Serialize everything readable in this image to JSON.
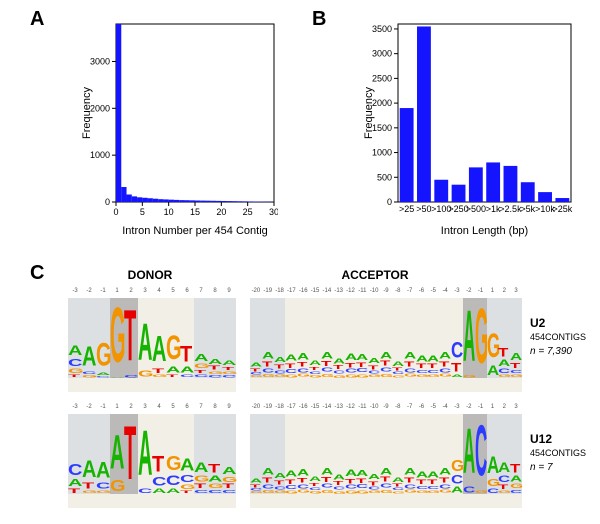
{
  "panelA": {
    "label": "A",
    "type": "bar",
    "xlabel": "Intron Number per 454 Contig",
    "ylabel": "Frequency",
    "bar_color": "#1414ff",
    "background_color": "#ffffff",
    "axis_color": "#000000",
    "bar_width": 1.0,
    "x_ticks": [
      0,
      5,
      10,
      15,
      20,
      25,
      30
    ],
    "y_ticks": [
      0,
      1000,
      2000,
      3000
    ],
    "y_tick_labels": [
      "0",
      "1000",
      "2000",
      "3000"
    ],
    "xlim": [
      0,
      30
    ],
    "ylim": [
      0,
      3800
    ],
    "values": [
      3800,
      320,
      160,
      120,
      100,
      90,
      80,
      70,
      60,
      55,
      50,
      45,
      40,
      38,
      35,
      32,
      30,
      28,
      26,
      24,
      22,
      20,
      18,
      16,
      14,
      12,
      10,
      8,
      6,
      4
    ],
    "label_fontsize": 11,
    "tick_fontsize": 9
  },
  "panelB": {
    "label": "B",
    "type": "bar",
    "xlabel": "Intron Length (bp)",
    "ylabel": "Frequency",
    "bar_color": "#1414ff",
    "background_color": "#ffffff",
    "axis_color": "#000000",
    "bar_width": 0.8,
    "categories": [
      ">25",
      ">50",
      ">100",
      ">250",
      ">500",
      ">1k",
      ">2.5k",
      ">5k",
      ">10k",
      ">25k"
    ],
    "values": [
      1900,
      3550,
      450,
      350,
      700,
      800,
      730,
      400,
      200,
      80
    ],
    "y_ticks": [
      0,
      500,
      1000,
      1500,
      2000,
      2500,
      3000,
      3500
    ],
    "y_tick_labels": [
      "0",
      "500",
      "1000",
      "1500",
      "2000",
      "2500",
      "3000",
      "3500"
    ],
    "ylim": [
      0,
      3600
    ],
    "label_fontsize": 11,
    "tick_fontsize": 9
  },
  "panelC": {
    "label": "C",
    "donor_title": "DONOR",
    "acceptor_title": "ACCEPTOR",
    "rows": [
      {
        "side": "U2",
        "sub": "454CONTIGS",
        "n": "n = 7,390"
      },
      {
        "side": "U12",
        "sub": "454CONTIGS",
        "n": "n = 7"
      }
    ],
    "colors": {
      "A": "#16b400",
      "C": "#2c3cff",
      "G": "#f29400",
      "T": "#e60000",
      "bg": "#f2efe7",
      "splice_bg": "#a8a8a8",
      "splice_shade": "#c8d2e0"
    },
    "donor_positions": [
      -3,
      -2,
      -1,
      1,
      2,
      3,
      4,
      5,
      6,
      7,
      8,
      9
    ],
    "acceptor_positions": [
      -20,
      -19,
      -18,
      -17,
      -16,
      -15,
      -14,
      -13,
      -12,
      -11,
      -10,
      -9,
      -8,
      -7,
      -6,
      -5,
      -4,
      -3,
      -2,
      -1,
      1,
      2,
      3
    ],
    "logos": {
      "u2_donor": [
        [
          [
            "A",
            0.35
          ],
          [
            "C",
            0.25
          ],
          [
            "G",
            0.15
          ],
          [
            "T",
            0.1
          ]
        ],
        [
          [
            "A",
            0.7
          ],
          [
            "C",
            0.1
          ],
          [
            "G",
            0.08
          ]
        ],
        [
          [
            "G",
            0.8
          ],
          [
            "A",
            0.1
          ],
          [
            "C",
            0.05
          ]
        ],
        [
          [
            "G",
            1.95
          ],
          [
            "A",
            0.02
          ]
        ],
        [
          [
            "T",
            1.8
          ],
          [
            "C",
            0.08
          ]
        ],
        [
          [
            "A",
            1.3
          ],
          [
            "G",
            0.2
          ]
        ],
        [
          [
            "A",
            0.9
          ],
          [
            "T",
            0.15
          ],
          [
            "G",
            0.1
          ]
        ],
        [
          [
            "G",
            0.85
          ],
          [
            "A",
            0.2
          ],
          [
            "T",
            0.1
          ]
        ],
        [
          [
            "T",
            0.55
          ],
          [
            "A",
            0.2
          ],
          [
            "C",
            0.1
          ]
        ],
        [
          [
            "A",
            0.25
          ],
          [
            "G",
            0.15
          ],
          [
            "T",
            0.12
          ],
          [
            "C",
            0.1
          ]
        ],
        [
          [
            "A",
            0.18
          ],
          [
            "T",
            0.14
          ],
          [
            "G",
            0.1
          ],
          [
            "C",
            0.08
          ]
        ],
        [
          [
            "A",
            0.15
          ],
          [
            "T",
            0.12
          ],
          [
            "G",
            0.1
          ],
          [
            "C",
            0.08
          ]
        ]
      ],
      "u2_acceptor_tail": [
        [
          [
            "C",
            0.55
          ],
          [
            "T",
            0.3
          ],
          [
            "A",
            0.1
          ]
        ],
        [
          [
            "A",
            1.8
          ],
          [
            "G",
            0.08
          ]
        ],
        [
          [
            "G",
            1.95
          ]
        ],
        [
          [
            "G",
            0.85
          ],
          [
            "A",
            0.35
          ]
        ],
        [
          [
            "T",
            0.3
          ],
          [
            "A",
            0.22
          ],
          [
            "C",
            0.15
          ],
          [
            "G",
            0.1
          ]
        ],
        [
          [
            "A",
            0.25
          ],
          [
            "T",
            0.18
          ],
          [
            "C",
            0.12
          ],
          [
            "G",
            0.1
          ]
        ]
      ],
      "u12_donor": [
        [
          [
            "C",
            0.4
          ],
          [
            "A",
            0.25
          ],
          [
            "T",
            0.15
          ]
        ],
        [
          [
            "A",
            0.6
          ],
          [
            "T",
            0.2
          ],
          [
            "G",
            0.1
          ]
        ],
        [
          [
            "A",
            0.55
          ],
          [
            "C",
            0.2
          ],
          [
            "G",
            0.1
          ]
        ],
        [
          [
            "A",
            1.2
          ],
          [
            "G",
            0.4
          ]
        ],
        [
          [
            "T",
            1.9
          ]
        ],
        [
          [
            "A",
            1.6
          ],
          [
            "C",
            0.15
          ]
        ],
        [
          [
            "T",
            0.55
          ],
          [
            "C",
            0.3
          ],
          [
            "A",
            0.15
          ]
        ],
        [
          [
            "G",
            0.5
          ],
          [
            "C",
            0.35
          ],
          [
            "A",
            0.15
          ]
        ],
        [
          [
            "A",
            0.45
          ],
          [
            "C",
            0.25
          ],
          [
            "G",
            0.15
          ],
          [
            "T",
            0.1
          ]
        ],
        [
          [
            "A",
            0.35
          ],
          [
            "G",
            0.2
          ],
          [
            "T",
            0.15
          ],
          [
            "C",
            0.12
          ]
        ],
        [
          [
            "T",
            0.3
          ],
          [
            "A",
            0.2
          ],
          [
            "G",
            0.15
          ],
          [
            "C",
            0.12
          ]
        ],
        [
          [
            "A",
            0.25
          ],
          [
            "G",
            0.18
          ],
          [
            "T",
            0.15
          ],
          [
            "C",
            0.12
          ]
        ]
      ],
      "u12_acceptor_tail": [
        [
          [
            "G",
            0.4
          ],
          [
            "C",
            0.3
          ],
          [
            "A",
            0.2
          ]
        ],
        [
          [
            "A",
            1.6
          ],
          [
            "C",
            0.2
          ]
        ],
        [
          [
            "C",
            1.8
          ],
          [
            "G",
            0.1
          ]
        ],
        [
          [
            "A",
            0.6
          ],
          [
            "G",
            0.25
          ],
          [
            "C",
            0.15
          ]
        ],
        [
          [
            "A",
            0.35
          ],
          [
            "C",
            0.22
          ],
          [
            "T",
            0.15
          ],
          [
            "G",
            0.1
          ]
        ],
        [
          [
            "T",
            0.3
          ],
          [
            "A",
            0.2
          ],
          [
            "G",
            0.15
          ],
          [
            "C",
            0.12
          ]
        ]
      ],
      "acceptor_prefix_generic": [
        [
          "A",
          0.2
        ],
        [
          "T",
          0.15
        ],
        [
          "C",
          0.12
        ],
        [
          "G",
          0.1
        ]
      ]
    }
  }
}
